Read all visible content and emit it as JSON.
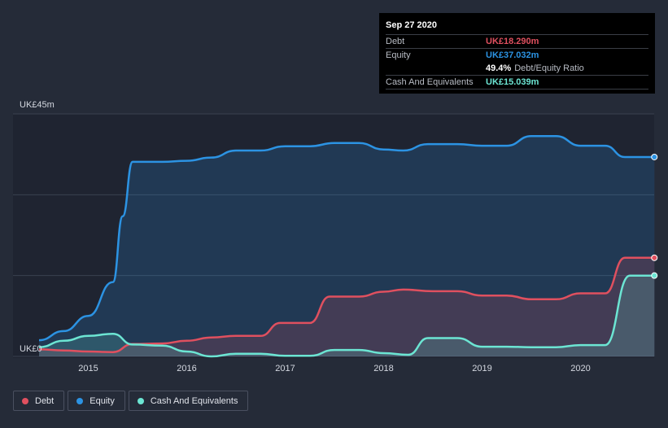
{
  "colors": {
    "debt": "#e0505f",
    "equity": "#2c93e3",
    "cash": "#6ce5d3",
    "background": "#252b38"
  },
  "tooltip": {
    "date": "Sep 27 2020",
    "debt_label": "Debt",
    "debt_value": "UK£18.290m",
    "equity_label": "Equity",
    "equity_value": "UK£37.032m",
    "ratio_value": "49.4%",
    "ratio_label": "Debt/Equity Ratio",
    "cash_label": "Cash And Equivalents",
    "cash_value": "UK£15.039m"
  },
  "legend": [
    {
      "label": "Debt",
      "color": "#e0505f"
    },
    {
      "label": "Equity",
      "color": "#2c93e3"
    },
    {
      "label": "Cash And Equivalents",
      "color": "#6ce5d3"
    }
  ],
  "chart_data": {
    "type": "area",
    "y_top_label": "UK£45m",
    "y_bottom_label": "UK£0",
    "ylim": [
      0,
      45
    ],
    "xlim": [
      2014.5,
      2020.75
    ],
    "x_ticks": [
      "2015",
      "2016",
      "2017",
      "2018",
      "2019",
      "2020"
    ],
    "x_tick_values": [
      2015,
      2016,
      2017,
      2018,
      2019,
      2020
    ],
    "grid": true,
    "series": [
      {
        "name": "Debt",
        "color": "#e0505f",
        "x": [
          2014.5,
          2014.75,
          2015.0,
          2015.25,
          2015.45,
          2015.75,
          2016.0,
          2016.25,
          2016.5,
          2016.75,
          2016.95,
          2017.25,
          2017.45,
          2017.75,
          2018.0,
          2018.2,
          2018.5,
          2018.75,
          2019.0,
          2019.25,
          2019.5,
          2019.75,
          2020.0,
          2020.25,
          2020.45,
          2020.75
        ],
        "y": [
          1.3,
          1.1,
          0.9,
          0.8,
          2.3,
          2.4,
          2.9,
          3.5,
          3.8,
          3.8,
          6.2,
          6.2,
          11.1,
          11.1,
          12.0,
          12.4,
          12.1,
          12.1,
          11.3,
          11.3,
          10.6,
          10.6,
          11.7,
          11.7,
          18.3,
          18.3
        ]
      },
      {
        "name": "Equity",
        "color": "#2c93e3",
        "x": [
          2014.5,
          2014.75,
          2015.0,
          2015.25,
          2015.35,
          2015.45,
          2015.75,
          2016.0,
          2016.25,
          2016.5,
          2016.75,
          2017.0,
          2017.25,
          2017.5,
          2017.75,
          2018.0,
          2018.2,
          2018.45,
          2018.75,
          2019.0,
          2019.25,
          2019.5,
          2019.75,
          2020.0,
          2020.25,
          2020.45,
          2020.75
        ],
        "y": [
          3.0,
          4.7,
          7.5,
          13.8,
          26.0,
          36.1,
          36.1,
          36.3,
          36.9,
          38.2,
          38.2,
          39.0,
          39.0,
          39.6,
          39.6,
          38.4,
          38.2,
          39.4,
          39.4,
          39.1,
          39.1,
          40.9,
          40.9,
          39.1,
          39.1,
          37.0,
          37.0
        ]
      },
      {
        "name": "Cash And Equivalents",
        "color": "#6ce5d3",
        "x": [
          2014.5,
          2014.75,
          2015.0,
          2015.25,
          2015.45,
          2015.75,
          2016.0,
          2016.25,
          2016.5,
          2016.75,
          2017.0,
          2017.25,
          2017.5,
          2017.75,
          2018.0,
          2018.25,
          2018.45,
          2018.75,
          2019.0,
          2019.25,
          2019.5,
          2019.75,
          2020.0,
          2020.25,
          2020.5,
          2020.75
        ],
        "y": [
          1.7,
          2.9,
          3.8,
          4.2,
          2.2,
          2.0,
          0.9,
          0.0,
          0.5,
          0.5,
          0.1,
          0.1,
          1.2,
          1.2,
          0.6,
          0.3,
          3.4,
          3.4,
          1.8,
          1.8,
          1.7,
          1.7,
          2.1,
          2.1,
          15.0,
          15.0
        ]
      }
    ]
  }
}
